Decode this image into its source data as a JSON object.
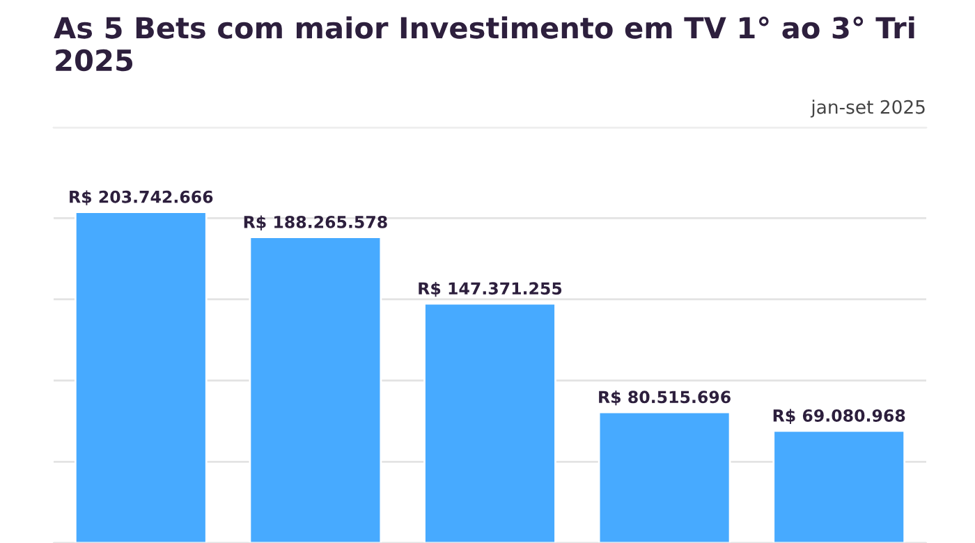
{
  "chart_data": {
    "type": "bar",
    "title": "As 5 Bets com maior Investimento em TV 1° ao 3° Tri 2025",
    "annotations": [
      "jan-set 2025"
    ],
    "categories": [
      null,
      null,
      null,
      null,
      null
    ],
    "values": [
      203742666,
      188265578,
      147371255,
      80515696,
      69080968
    ],
    "value_labels": [
      "R$ 203.742.666",
      "R$ 188.265.578",
      "R$ 147.371.255",
      "R$ 80.515.696",
      "R$ 69.080.968"
    ],
    "color": "#47aaff",
    "grid": "y"
  }
}
